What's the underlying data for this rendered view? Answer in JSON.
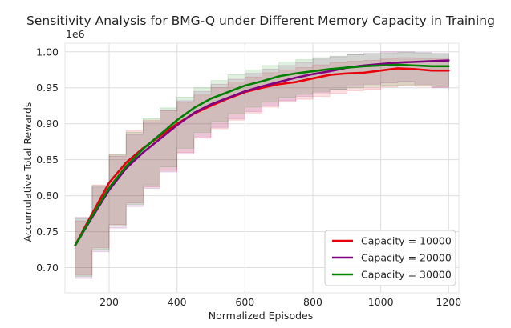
{
  "chart_data": {
    "type": "line",
    "title": "Sensitivity Analysis for BMG-Q under Different Memory Capacity in Training",
    "xlabel": "Normalized Episodes",
    "ylabel": "Accumulative Total Rewards",
    "y_offset_text": "1e6",
    "xlim": [
      70,
      1230
    ],
    "ylim": [
      0.665,
      1.012
    ],
    "xticks": [
      200,
      400,
      600,
      800,
      1000,
      1200
    ],
    "xtick_labels": [
      "200",
      "400",
      "600",
      "800",
      "1000",
      "1200"
    ],
    "yticks": [
      0.7,
      0.75,
      0.8,
      0.85,
      0.9,
      0.95,
      1.0
    ],
    "ytick_labels": [
      "0.70",
      "0.75",
      "0.80",
      "0.85",
      "0.90",
      "0.95",
      "1.00"
    ],
    "grid": true,
    "legend_position": "lower right",
    "x": [
      100,
      150,
      200,
      250,
      300,
      350,
      400,
      450,
      500,
      550,
      600,
      650,
      700,
      750,
      800,
      850,
      900,
      950,
      1000,
      1050,
      1100,
      1150,
      1200
    ],
    "series": [
      {
        "name": "Capacity = 10000",
        "color": "#e8000b",
        "values": [
          0.731,
          0.775,
          0.818,
          0.846,
          0.866,
          0.883,
          0.9,
          0.914,
          0.925,
          0.935,
          0.944,
          0.95,
          0.955,
          0.958,
          0.963,
          0.968,
          0.97,
          0.971,
          0.974,
          0.977,
          0.976,
          0.974,
          0.974
        ],
        "band_lower": [
          0.69,
          0.728,
          0.76,
          0.79,
          0.812,
          0.835,
          0.86,
          0.88,
          0.893,
          0.905,
          0.915,
          0.923,
          0.93,
          0.934,
          0.938,
          0.942,
          0.946,
          0.948,
          0.951,
          0.953,
          0.952,
          0.951,
          0.951
        ],
        "band_upper": [
          0.765,
          0.815,
          0.858,
          0.89,
          0.905,
          0.918,
          0.93,
          0.94,
          0.95,
          0.958,
          0.965,
          0.971,
          0.975,
          0.978,
          0.982,
          0.985,
          0.987,
          0.988,
          0.99,
          0.992,
          0.991,
          0.99,
          0.99
        ]
      },
      {
        "name": "Capacity = 20000",
        "color": "#800080",
        "values": [
          0.731,
          0.77,
          0.808,
          0.838,
          0.86,
          0.879,
          0.898,
          0.915,
          0.927,
          0.936,
          0.945,
          0.952,
          0.958,
          0.964,
          0.969,
          0.973,
          0.978,
          0.981,
          0.983,
          0.985,
          0.986,
          0.987,
          0.988
        ],
        "band_lower": [
          0.685,
          0.722,
          0.755,
          0.785,
          0.81,
          0.833,
          0.858,
          0.88,
          0.895,
          0.907,
          0.917,
          0.925,
          0.932,
          0.938,
          0.943,
          0.948,
          0.952,
          0.955,
          0.957,
          0.959,
          0.955,
          0.95,
          0.947
        ],
        "band_upper": [
          0.77,
          0.812,
          0.855,
          0.885,
          0.903,
          0.918,
          0.932,
          0.945,
          0.955,
          0.962,
          0.97,
          0.976,
          0.981,
          0.985,
          0.99,
          0.993,
          0.996,
          0.998,
          1.0,
          1.0,
          0.999,
          0.998,
          0.998
        ]
      },
      {
        "name": "Capacity = 30000",
        "color": "#008000",
        "values": [
          0.731,
          0.772,
          0.811,
          0.841,
          0.865,
          0.885,
          0.905,
          0.922,
          0.935,
          0.944,
          0.953,
          0.959,
          0.966,
          0.97,
          0.973,
          0.976,
          0.978,
          0.98,
          0.981,
          0.982,
          0.981,
          0.98,
          0.98
        ],
        "band_lower": [
          0.688,
          0.725,
          0.758,
          0.788,
          0.815,
          0.84,
          0.866,
          0.888,
          0.903,
          0.914,
          0.923,
          0.93,
          0.937,
          0.941,
          0.945,
          0.948,
          0.95,
          0.952,
          0.953,
          0.954,
          0.953,
          0.952,
          0.952
        ],
        "band_upper": [
          0.768,
          0.814,
          0.857,
          0.888,
          0.907,
          0.922,
          0.937,
          0.95,
          0.96,
          0.968,
          0.975,
          0.981,
          0.986,
          0.989,
          0.992,
          0.994,
          0.996,
          0.997,
          0.998,
          0.999,
          0.998,
          0.997,
          0.997
        ]
      }
    ]
  }
}
